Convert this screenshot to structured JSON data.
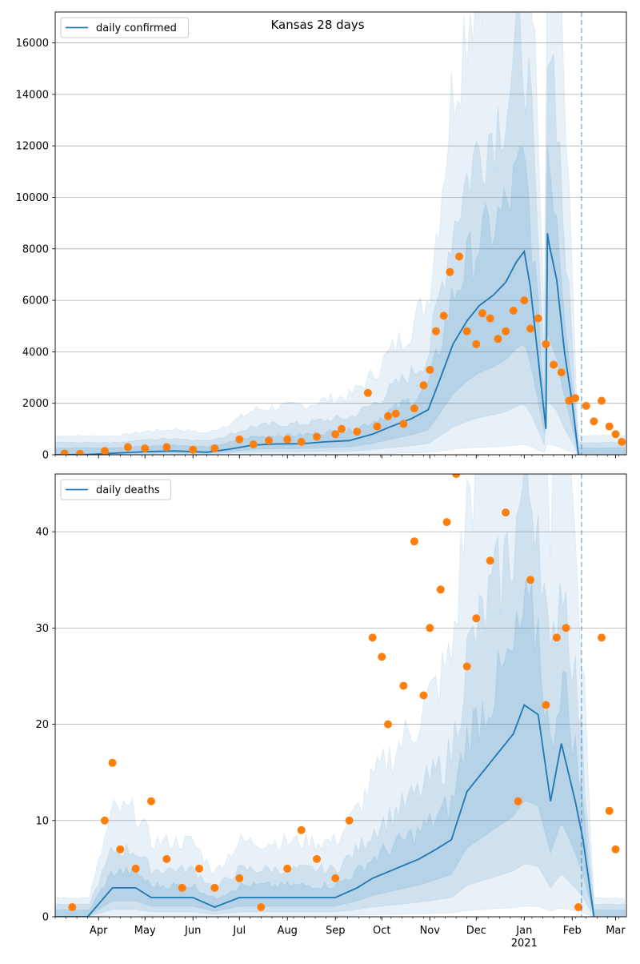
{
  "figure_title": "Kansas 28 days",
  "x_ticks": [
    {
      "label": "Apr",
      "date": "2020-04-01"
    },
    {
      "label": "May",
      "date": "2020-05-01"
    },
    {
      "label": "Jun",
      "date": "2020-06-01"
    },
    {
      "label": "Jul",
      "date": "2020-07-01"
    },
    {
      "label": "Aug",
      "date": "2020-08-01"
    },
    {
      "label": "Sep",
      "date": "2020-09-01"
    },
    {
      "label": "Oct",
      "date": "2020-10-01"
    },
    {
      "label": "Nov",
      "date": "2020-11-01"
    },
    {
      "label": "Dec",
      "date": "2020-12-01"
    },
    {
      "label": "Jan",
      "date": "2021-01-01"
    },
    {
      "label": "Feb",
      "date": "2021-02-01"
    },
    {
      "label": "Mar",
      "date": "2021-03-01"
    }
  ],
  "year_label": "2021",
  "x_range": [
    "2020-03-04",
    "2021-03-08"
  ],
  "vline_date": "2021-02-07",
  "colors": {
    "line": "#1f77b4",
    "points": "#ff7f0e",
    "band": "#1f77b4",
    "grid": "#b0b0b0"
  },
  "chart_data": [
    {
      "type": "line",
      "title": "Kansas 28 days",
      "series": [
        {
          "name": "daily confirmed",
          "kind": "line",
          "x": [
            "2020-03-04",
            "2020-03-25",
            "2020-04-10",
            "2020-05-01",
            "2020-05-20",
            "2020-06-10",
            "2020-06-25",
            "2020-07-10",
            "2020-07-25",
            "2020-08-10",
            "2020-08-25",
            "2020-09-10",
            "2020-09-25",
            "2020-10-05",
            "2020-10-20",
            "2020-10-31",
            "2020-11-08",
            "2020-11-16",
            "2020-11-25",
            "2020-12-03",
            "2020-12-12",
            "2020-12-20",
            "2020-12-27",
            "2021-01-01",
            "2021-01-05",
            "2021-01-15",
            "2021-01-16",
            "2021-01-17",
            "2021-01-22",
            "2021-01-27",
            "2021-02-01",
            "2021-02-05"
          ],
          "values": [
            0,
            10,
            60,
            120,
            150,
            100,
            220,
            380,
            420,
            430,
            500,
            550,
            800,
            1050,
            1400,
            1750,
            3000,
            4300,
            5200,
            5800,
            6200,
            6700,
            7500,
            7900,
            6500,
            1000,
            8600,
            8200,
            6800,
            4000,
            2000,
            0
          ]
        },
        {
          "name": "",
          "kind": "points",
          "x": [
            "2020-03-10",
            "2020-03-20",
            "2020-04-05",
            "2020-04-20",
            "2020-05-01",
            "2020-05-15",
            "2020-06-01",
            "2020-06-15",
            "2020-07-01",
            "2020-07-10",
            "2020-07-20",
            "2020-08-01",
            "2020-08-10",
            "2020-08-20",
            "2020-09-01",
            "2020-09-05",
            "2020-09-15",
            "2020-09-22",
            "2020-09-28",
            "2020-10-05",
            "2020-10-10",
            "2020-10-15",
            "2020-10-22",
            "2020-10-28",
            "2020-11-01",
            "2020-11-05",
            "2020-11-10",
            "2020-11-14",
            "2020-11-20",
            "2020-11-25",
            "2020-12-01",
            "2020-12-05",
            "2020-12-10",
            "2020-12-15",
            "2020-12-20",
            "2020-12-25",
            "2021-01-01",
            "2021-01-05",
            "2021-01-10",
            "2021-01-15",
            "2021-01-20",
            "2021-01-25",
            "2021-01-30",
            "2021-02-03",
            "2021-02-10",
            "2021-02-15",
            "2021-02-20",
            "2021-02-25",
            "2021-03-01",
            "2021-03-05"
          ],
          "values": [
            50,
            40,
            150,
            300,
            250,
            300,
            200,
            250,
            600,
            400,
            550,
            600,
            500,
            700,
            800,
            1000,
            900,
            2400,
            1100,
            1500,
            1600,
            1200,
            1800,
            2700,
            3300,
            4800,
            5400,
            7100,
            7700,
            4800,
            4300,
            5500,
            5300,
            4500,
            4800,
            5600,
            6000,
            4900,
            5300,
            4300,
            3500,
            3200,
            2100,
            2200,
            1900,
            1300,
            2100,
            1100,
            800,
            500
          ]
        }
      ],
      "ylim": [
        0,
        17200
      ],
      "y_ticks": [
        0,
        2000,
        4000,
        6000,
        8000,
        10000,
        12000,
        14000,
        16000
      ],
      "legend": [
        "daily confirmed"
      ],
      "legend_position": "top-left",
      "grid": "horizontal"
    },
    {
      "type": "line",
      "title": "",
      "series": [
        {
          "name": "daily deaths",
          "kind": "line",
          "x": [
            "2020-03-04",
            "2020-03-25",
            "2020-04-10",
            "2020-04-25",
            "2020-05-05",
            "2020-05-20",
            "2020-06-01",
            "2020-06-15",
            "2020-07-01",
            "2020-07-15",
            "2020-08-01",
            "2020-08-15",
            "2020-09-01",
            "2020-09-15",
            "2020-09-25",
            "2020-10-10",
            "2020-10-25",
            "2020-11-05",
            "2020-11-15",
            "2020-11-25",
            "2020-12-05",
            "2020-12-15",
            "2020-12-25",
            "2021-01-01",
            "2021-01-10",
            "2021-01-18",
            "2021-01-25",
            "2021-02-03",
            "2021-02-08",
            "2021-02-15"
          ],
          "values": [
            0,
            0,
            3,
            3,
            2,
            2,
            2,
            1,
            2,
            2,
            2,
            2,
            2,
            3,
            4,
            5,
            6,
            7,
            8,
            13,
            15,
            17,
            19,
            22,
            21,
            12,
            18,
            12,
            8,
            0
          ]
        },
        {
          "name": "",
          "kind": "points",
          "x": [
            "2020-03-15",
            "2020-04-05",
            "2020-04-10",
            "2020-04-15",
            "2020-04-25",
            "2020-05-05",
            "2020-05-15",
            "2020-05-25",
            "2020-06-05",
            "2020-06-15",
            "2020-07-01",
            "2020-07-15",
            "2020-08-01",
            "2020-08-10",
            "2020-08-20",
            "2020-09-01",
            "2020-09-10",
            "2020-09-25",
            "2020-10-01",
            "2020-10-05",
            "2020-10-15",
            "2020-10-22",
            "2020-10-28",
            "2020-11-01",
            "2020-11-08",
            "2020-11-12",
            "2020-11-18",
            "2020-11-25",
            "2020-12-01",
            "2020-12-10",
            "2020-12-20",
            "2020-12-28",
            "2021-01-05",
            "2021-01-15",
            "2021-01-22",
            "2021-01-28",
            "2021-02-05",
            "2021-02-20",
            "2021-02-25",
            "2021-03-01"
          ],
          "values": [
            1,
            10,
            16,
            7,
            5,
            12,
            6,
            3,
            5,
            3,
            4,
            1,
            5,
            9,
            6,
            4,
            10,
            29,
            27,
            20,
            24,
            39,
            23,
            30,
            34,
            41,
            46,
            26,
            31,
            37,
            42,
            12,
            35,
            22,
            29,
            30,
            1,
            29,
            11,
            7
          ]
        }
      ],
      "ylim": [
        0,
        46
      ],
      "y_ticks": [
        0,
        10,
        20,
        30,
        40
      ],
      "legend": [
        "daily deaths"
      ],
      "legend_position": "top-left",
      "grid": "horizontal"
    }
  ]
}
